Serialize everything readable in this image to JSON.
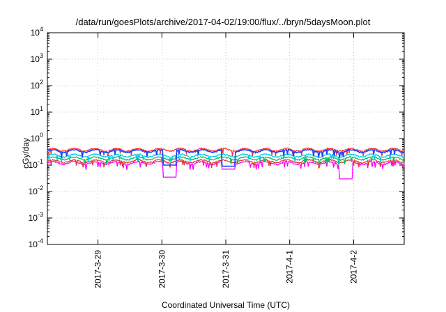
{
  "chart_data": {
    "type": "line",
    "title": "/data/run/goesPlots/archive/2017-04-02/19:00/flux/../bryn/5daysMoon.plot",
    "xlabel": "Coordinated Universal Time (UTC)",
    "ylabel": "cGy/day",
    "yscale": "log",
    "ylim": [
      0.0001,
      10000
    ],
    "y_ticks": [
      {
        "value": 0.0001,
        "base": "10",
        "exp": "-4"
      },
      {
        "value": 0.001,
        "base": "10",
        "exp": "-3"
      },
      {
        "value": 0.01,
        "base": "10",
        "exp": "-2"
      },
      {
        "value": 0.1,
        "base": "10",
        "exp": "-1"
      },
      {
        "value": 1,
        "base": "10",
        "exp": "0"
      },
      {
        "value": 10,
        "base": "10",
        "exp": "1"
      },
      {
        "value": 100,
        "base": "10",
        "exp": "2"
      },
      {
        "value": 1000,
        "base": "10",
        "exp": "3"
      },
      {
        "value": 10000,
        "base": "10",
        "exp": "4"
      }
    ],
    "xlim": [
      "2017-03-28 05:00",
      "2017-04-02 19:00"
    ],
    "x_ticks": [
      "2017-3-29",
      "2017-3-30",
      "2017-3-31",
      "2017-4-1",
      "2017-4-2"
    ],
    "grid": true,
    "series": [
      {
        "color": "#ff00ff",
        "level": 0.12,
        "dips": [
          [
            "2017-03-30 03:00",
            0.035
          ],
          [
            "2017-03-31 01:00",
            0.07
          ],
          [
            "2017-04-01 21:00",
            0.03
          ]
        ]
      },
      {
        "color": "#e03c3c",
        "level": 0.14,
        "dips": []
      },
      {
        "color": "#00c060",
        "level": 0.18,
        "dips": []
      },
      {
        "color": "#00c8e0",
        "level": 0.23,
        "dips": []
      },
      {
        "color": "#ff3030",
        "level": 0.38,
        "dips": []
      },
      {
        "color": "#2040ff",
        "level": 0.34,
        "dips": [
          [
            "2017-03-30 03:00",
            0.1
          ],
          [
            "2017-03-31 01:00",
            0.09
          ]
        ]
      }
    ]
  }
}
